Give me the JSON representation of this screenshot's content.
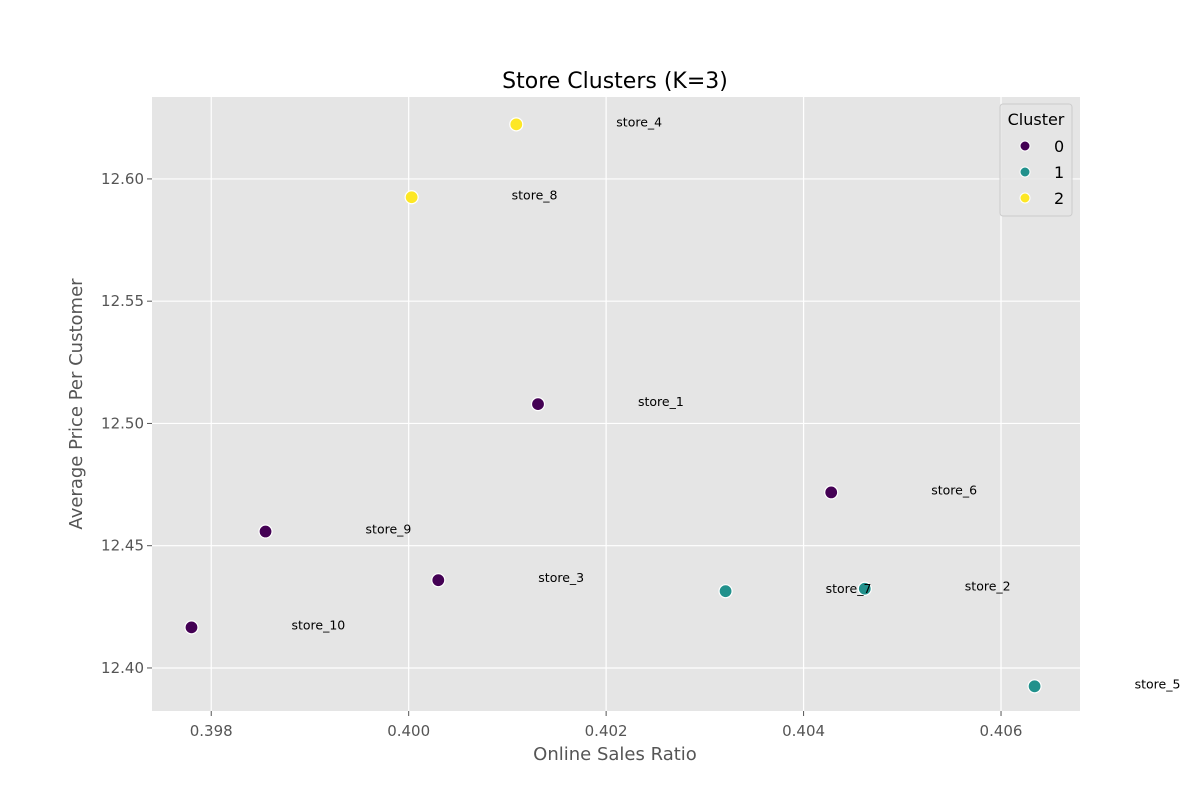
{
  "chart_data": {
    "type": "scatter",
    "title": "Store Clusters (K=3)",
    "xlabel": "Online Sales Ratio",
    "ylabel": "Average Price Per Customer",
    "xlim": [
      0.3974,
      0.4068
    ],
    "ylim": [
      12.3824,
      12.6335
    ],
    "xticks": [
      0.398,
      0.4,
      0.402,
      0.404,
      0.406
    ],
    "xtick_labels": [
      "0.398",
      "0.400",
      "0.402",
      "0.404",
      "0.406"
    ],
    "yticks": [
      12.4,
      12.45,
      12.5,
      12.55,
      12.6
    ],
    "ytick_labels": [
      "12.40",
      "12.45",
      "12.50",
      "12.55",
      "12.60"
    ],
    "grid": true,
    "legend": {
      "title": "Cluster",
      "placement": "top-right",
      "entries": [
        {
          "label": "0",
          "color": "#440154"
        },
        {
          "label": "1",
          "color": "#21918c"
        },
        {
          "label": "2",
          "color": "#fde725"
        }
      ]
    },
    "points": [
      {
        "label": "store_1",
        "x": 0.40131,
        "y": 12.5079,
        "cluster": 0
      },
      {
        "label": "store_2",
        "x": 0.40462,
        "y": 12.4324,
        "cluster": 1
      },
      {
        "label": "store_3",
        "x": 0.4003,
        "y": 12.4359,
        "cluster": 0
      },
      {
        "label": "store_4",
        "x": 0.40109,
        "y": 12.6223,
        "cluster": 2
      },
      {
        "label": "store_5",
        "x": 0.40634,
        "y": 12.3925,
        "cluster": 1
      },
      {
        "label": "store_6",
        "x": 0.40428,
        "y": 12.4718,
        "cluster": 0
      },
      {
        "label": "store_7",
        "x": 0.40321,
        "y": 12.4314,
        "cluster": 1
      },
      {
        "label": "store_8",
        "x": 0.40003,
        "y": 12.5925,
        "cluster": 2
      },
      {
        "label": "store_9",
        "x": 0.39855,
        "y": 12.4558,
        "cluster": 0
      },
      {
        "label": "store_10",
        "x": 0.3978,
        "y": 12.4166,
        "cluster": 0
      }
    ],
    "colors": {
      "plot_background": "#e5e5e5",
      "grid": "#ffffff"
    }
  }
}
